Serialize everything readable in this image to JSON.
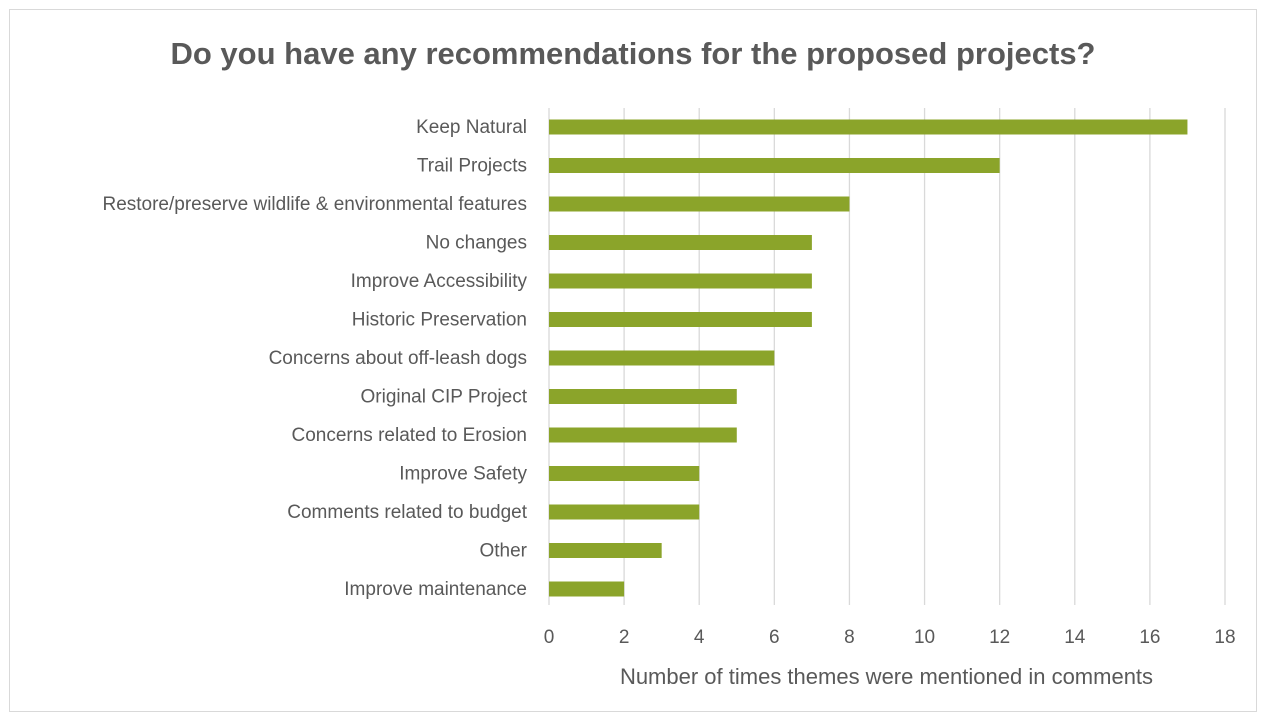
{
  "chart_data": {
    "type": "bar",
    "orientation": "horizontal",
    "title": "Do you have any recommendations for the proposed projects?",
    "xlabel": "Number of times themes were mentioned in comments",
    "ylabel": "",
    "categories": [
      "Keep Natural",
      "Trail Projects",
      "Restore/preserve wildlife & environmental features",
      "No changes",
      "Improve Accessibility",
      "Historic Preservation",
      "Concerns about off-leash dogs",
      "Original CIP Project",
      "Concerns related to Erosion",
      "Improve Safety",
      "Comments related to budget",
      "Other",
      "Improve maintenance"
    ],
    "values": [
      17,
      12,
      8,
      7,
      7,
      7,
      6,
      5,
      5,
      4,
      4,
      3,
      2
    ],
    "xlim": [
      0,
      18
    ],
    "xticks": [
      0,
      2,
      4,
      6,
      8,
      10,
      12,
      14,
      16,
      18
    ],
    "grid": true,
    "legend": "none",
    "bar_color": "#8ba42a",
    "grid_color": "#d9d9d9",
    "text_color": "#595959"
  }
}
